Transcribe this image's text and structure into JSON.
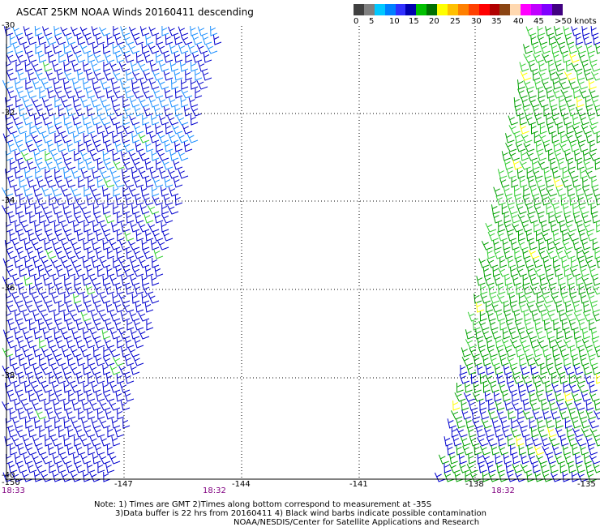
{
  "title": "ASCAT 25KM NOAA Winds 20160411 descending",
  "legend": {
    "colors": [
      "#404040",
      "#808080",
      "#00c8ff",
      "#0080ff",
      "#3030ff",
      "#0000b0",
      "#00c000",
      "#007000",
      "#ffff00",
      "#ffc000",
      "#ff8000",
      "#ff4000",
      "#ff0000",
      "#b00000",
      "#8b4513",
      "#ffd8b0",
      "#ff00ff",
      "#c000ff",
      "#8000ff",
      "#400080"
    ],
    "labels": [
      "0",
      "5",
      "10",
      "15",
      "20",
      "25",
      "30",
      "35",
      "40",
      "45",
      ">50 knots"
    ]
  },
  "axes": {
    "lat_labels": [
      "-30",
      "-32",
      "-34",
      "-36",
      "-38",
      "-40"
    ],
    "lon_labels": [
      "-150",
      "-147",
      "-144",
      "-141",
      "-138",
      "-135"
    ]
  },
  "times": [
    "18:33",
    "18:32",
    "18:32"
  ],
  "notes": [
    "Note: 1) Times are GMT 2)Times along bottom correspond to measurement at -35S",
    "3)Data buffer is 22 hrs from 20160411 4) Black wind barbs indicate possible contamination",
    "NOAA/NESDIS/Center for Satellite Applications and Research"
  ]
}
